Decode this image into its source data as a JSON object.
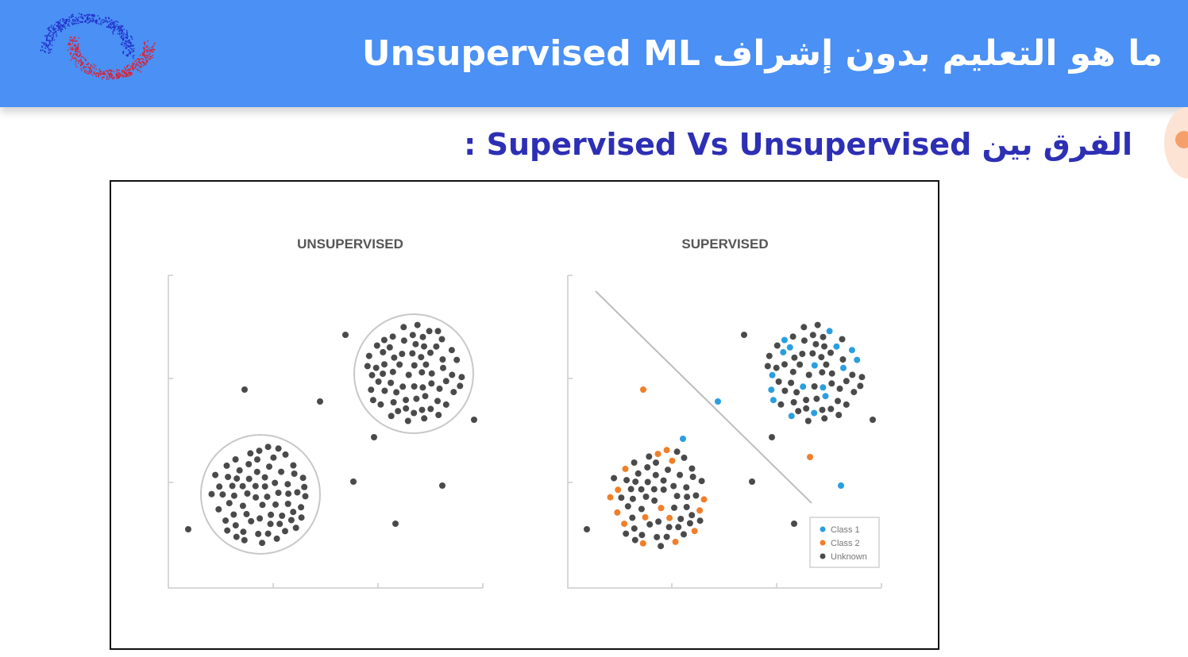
{
  "header": {
    "title": "ما هو التعليم بدون إشراف Unsupervised ML",
    "background_color": "#4a90f5",
    "logo_icon": "red-blue-particle-wave-logo"
  },
  "subtitle": "الفرق بين Supervised Vs Unsupervised :",
  "figure": {
    "unsupervised": {
      "title": "UNSUPERVISED"
    },
    "supervised": {
      "title": "SUPERVISED",
      "legend": [
        {
          "label": "Class 1",
          "color": "#2a9ee0"
        },
        {
          "label": "Class 2",
          "color": "#f07f2a"
        },
        {
          "label": "Unknown",
          "color": "#4a4a4a"
        }
      ]
    }
  }
}
